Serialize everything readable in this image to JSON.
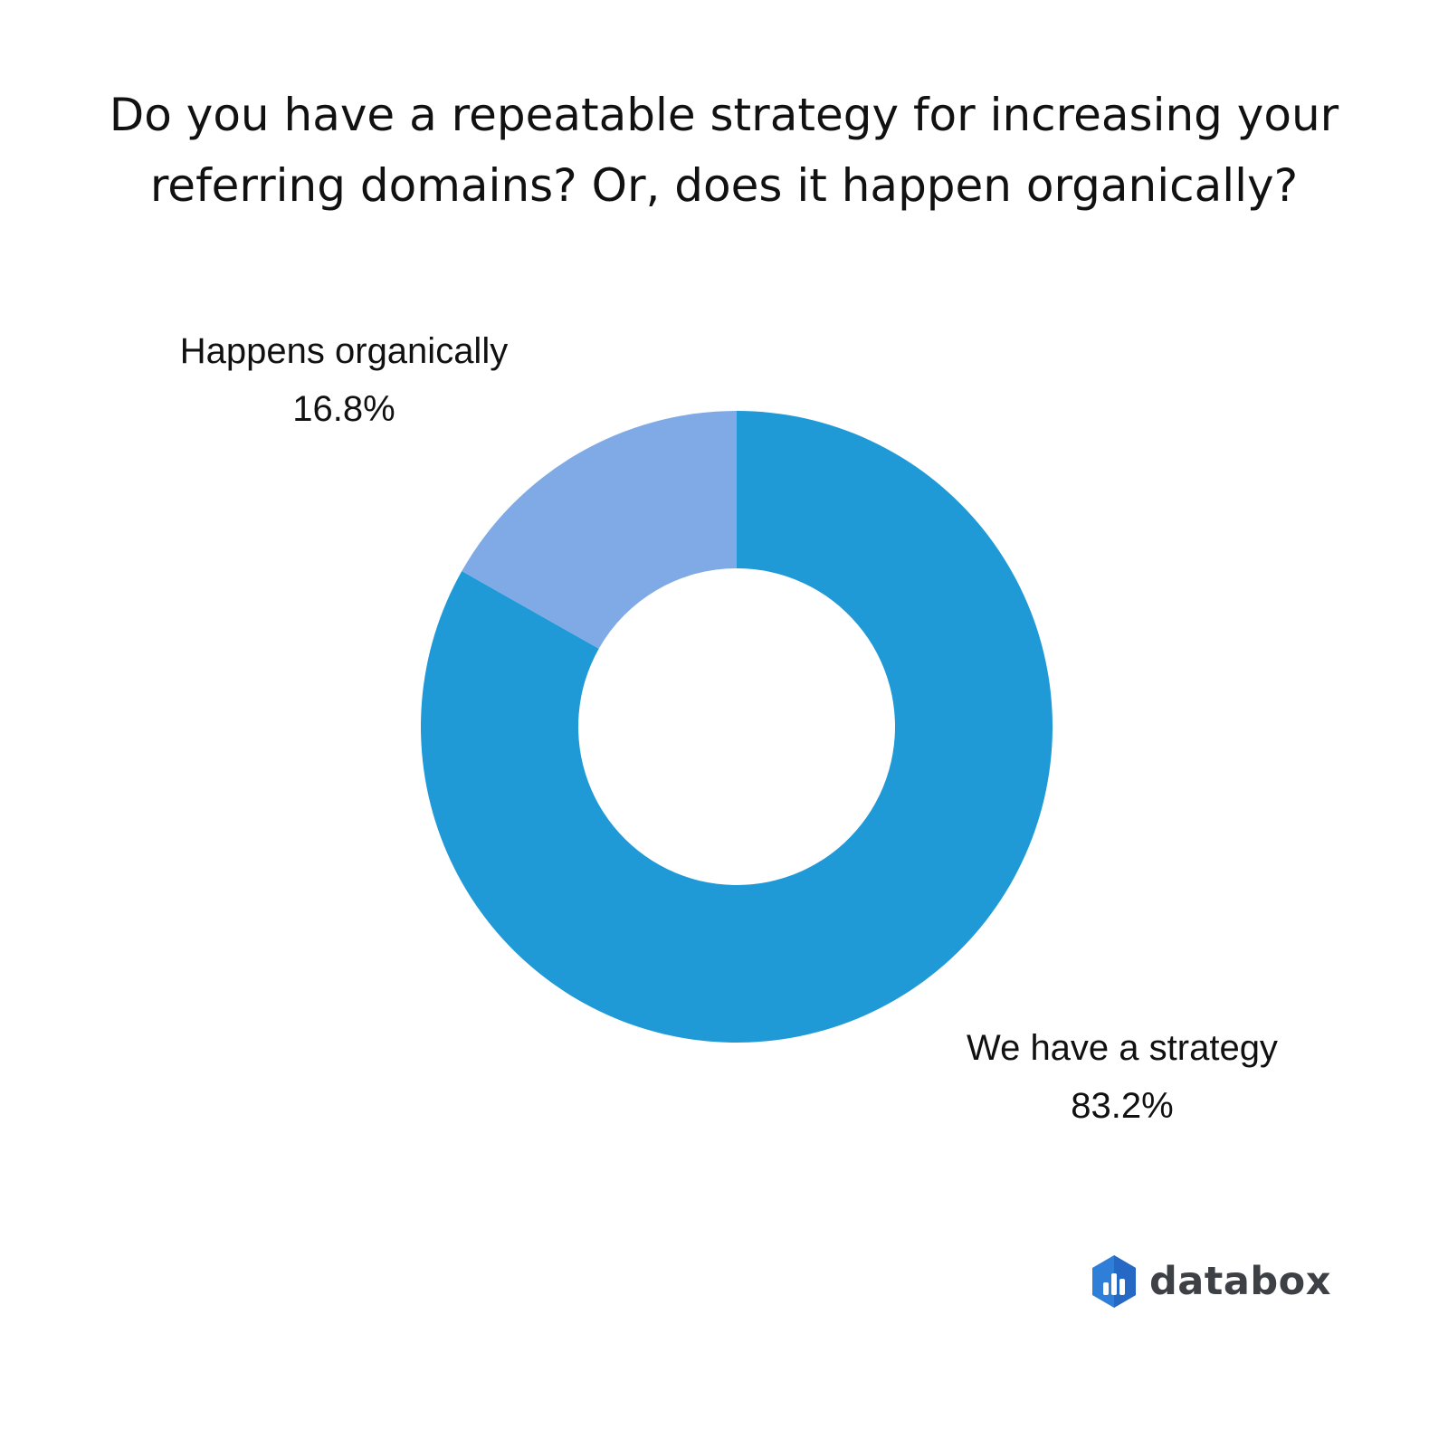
{
  "title": {
    "line1": "Do you have a repeatable strategy for increasing your",
    "line2": "referring domains? Or, does it happen organically?"
  },
  "chart_data": {
    "type": "pie",
    "variant": "donut",
    "title": "Do you have a repeatable strategy for increasing your referring domains? Or, does it happen organically?",
    "start": "12 o'clock, clockwise",
    "slices": [
      {
        "label": "We have a strategy",
        "value": 83.2,
        "display": "83.2%",
        "color": "#1f9ad6"
      },
      {
        "label": "Happens organically",
        "value": 16.8,
        "display": "16.8%",
        "color": "#7faae6"
      }
    ],
    "legend": "none",
    "labels_placement": "outside"
  },
  "brand": {
    "name": "databox",
    "icon": "databox-hexagon-icon",
    "icon_color": "#2f7fd9",
    "text_color": "#3d4045"
  }
}
